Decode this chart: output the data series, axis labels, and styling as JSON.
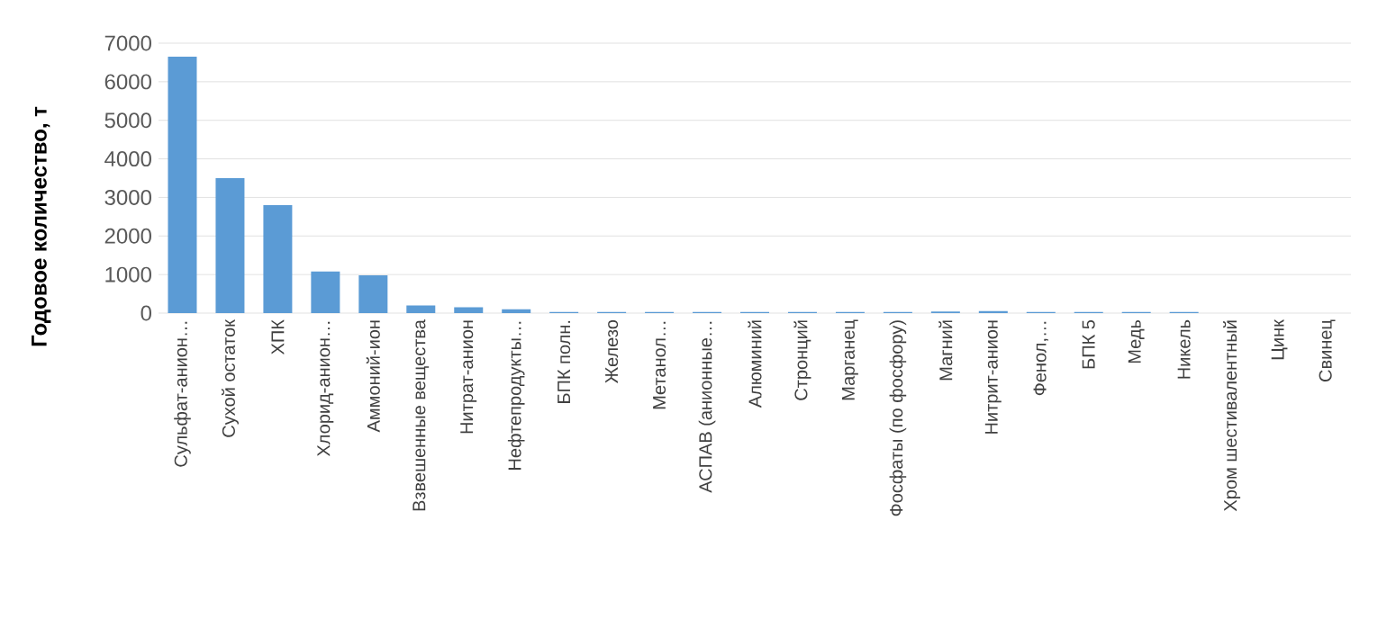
{
  "chart_data": {
    "type": "bar",
    "ylabel": "Годовое количество, т",
    "categories": [
      "Сульфат-анион…",
      "Сухой остаток",
      "ХПК",
      "Хлорид-анион…",
      "Аммоний-ион",
      "Взвешенные вещества",
      "Нитрат-анион",
      "Нефтепродукты…",
      "БПК полн.",
      "Железо",
      "Метанол…",
      "АСПАВ (анионные…",
      "Алюминий",
      "Стронций",
      "Марганец",
      "Фосфаты (по фосфору)",
      "Магний",
      "Нитрит-анион",
      "Фенол,…",
      "БПК 5",
      "Медь",
      "Никель",
      "Хром шестивалентный",
      "Цинк",
      "Свинец"
    ],
    "values": [
      6650,
      3500,
      2800,
      1080,
      980,
      200,
      150,
      100,
      30,
      30,
      30,
      30,
      30,
      30,
      30,
      30,
      40,
      50,
      30,
      30,
      30,
      30,
      0,
      0,
      0
    ],
    "color": "#5b9bd5",
    "ylim": [
      0,
      7000
    ],
    "yticks": [
      0,
      1000,
      2000,
      3000,
      4000,
      5000,
      6000,
      7000
    ],
    "grid": "y"
  }
}
